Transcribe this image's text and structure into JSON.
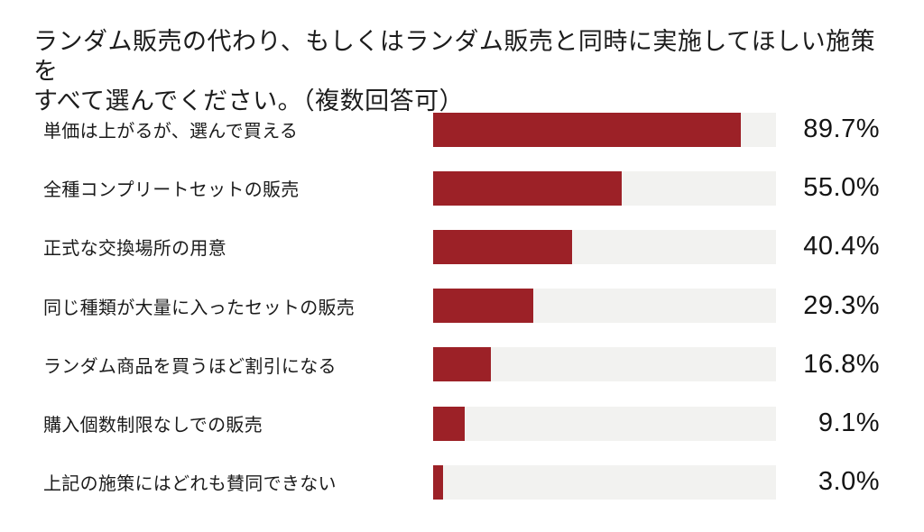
{
  "title": {
    "line1": "ランダム販売の代わり、もしくはランダム販売と同時に実施してほしい施策を",
    "line2": "すべて選んでください。（複数回答可）"
  },
  "colors": {
    "bar_fill": "#9c2127",
    "bar_track": "#f2f2f0",
    "text": "#1b1b1b"
  },
  "chart_data": {
    "type": "bar",
    "orientation": "horizontal",
    "title": "ランダム販売の代わり、もしくはランダム販売と同時に実施してほしい施策をすべて選んでください。（複数回答可）",
    "categories": [
      "単価は上がるが、選んで買える",
      "全種コンプリートセットの販売",
      "正式な交換場所の用意",
      "同じ種類が大量に入ったセットの販売",
      "ランダム商品を買うほど割引になる",
      "購入個数制限なしでの販売",
      "上記の施策にはどれも賛同できない"
    ],
    "values": [
      89.7,
      55.0,
      40.4,
      29.3,
      16.8,
      9.1,
      3.0
    ],
    "value_labels": [
      "89.7%",
      "55.0%",
      "40.4%",
      "29.3%",
      "16.8%",
      "9.1%",
      "3.0%"
    ],
    "xlabel": "",
    "ylabel": "",
    "xlim": [
      0,
      100
    ],
    "unit": "%",
    "grid": false,
    "legend": "none"
  }
}
